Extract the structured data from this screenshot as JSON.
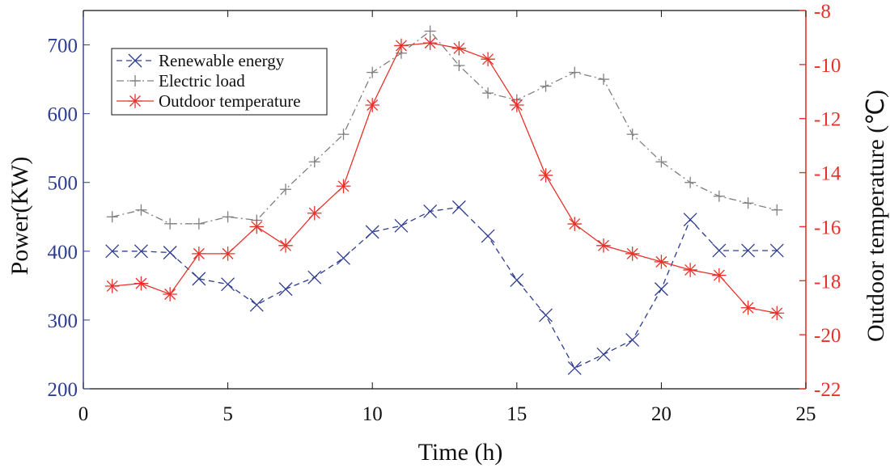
{
  "chart_data": {
    "type": "line",
    "title": "",
    "xlabel": "Time (h)",
    "ylabel_left": "Power(KW)",
    "ylabel_right": "Outdoor temperature (℃)",
    "xlim": [
      0,
      25
    ],
    "ylim_left": [
      200,
      750
    ],
    "ylim_right": [
      -22,
      -8
    ],
    "xticks": [
      "0",
      "5",
      "10",
      "15",
      "20",
      "25"
    ],
    "yticks_left": [
      "200",
      "300",
      "400",
      "500",
      "600",
      "700"
    ],
    "yticks_right": [
      "-22",
      "-20",
      "-18",
      "-16",
      "-14",
      "-12",
      "-10",
      "-8"
    ],
    "grid": false,
    "legend_position": "top-left",
    "x": [
      1,
      2,
      3,
      4,
      5,
      6,
      7,
      8,
      9,
      10,
      11,
      12,
      13,
      14,
      15,
      16,
      17,
      18,
      19,
      20,
      21,
      22,
      23,
      24
    ],
    "series": [
      {
        "name": "Renewable energy",
        "axis": "left",
        "color": "#2e3d8f",
        "line_style": "dashed",
        "marker": "x",
        "values": [
          400,
          400,
          398,
          360,
          352,
          322,
          345,
          362,
          390,
          428,
          437,
          458,
          464,
          422,
          358,
          307,
          230,
          250,
          271,
          345,
          446,
          401,
          401,
          401
        ]
      },
      {
        "name": "Electric load",
        "axis": "left",
        "color": "#808080",
        "line_style": "dashdot",
        "marker": "+",
        "values": [
          450,
          460,
          440,
          440,
          450,
          445,
          490,
          530,
          570,
          660,
          688,
          720,
          670,
          630,
          620,
          640,
          660,
          650,
          570,
          530,
          500,
          480,
          470,
          460
        ]
      },
      {
        "name": "Outdoor temperature",
        "axis": "right",
        "color": "#e8312b",
        "line_style": "solid",
        "marker": "*",
        "values": [
          -18.2,
          -18.1,
          -18.5,
          -17.0,
          -17.0,
          -16.0,
          -16.7,
          -15.5,
          -14.5,
          -11.5,
          -9.3,
          -9.2,
          -9.4,
          -9.8,
          -11.5,
          -14.1,
          -15.9,
          -16.7,
          -17.0,
          -17.3,
          -17.6,
          -17.8,
          -19.0,
          -19.2
        ]
      }
    ]
  }
}
